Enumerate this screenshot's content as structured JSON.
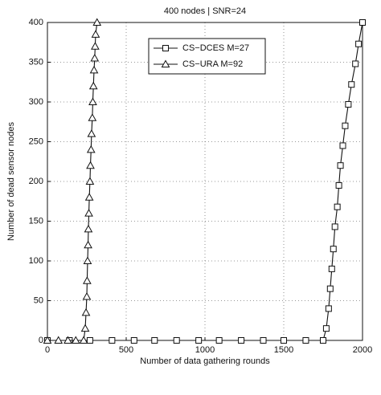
{
  "chart_data": {
    "type": "line",
    "title": "400 nodes | SNR=24",
    "x_label": "Number of data gathering rounds",
    "y_label": "Number of dead sensor nodes",
    "xlim": [
      0,
      2000
    ],
    "xticks": [
      0,
      500,
      1000,
      1500,
      2000
    ],
    "ylim": [
      0,
      400
    ],
    "yticks": [
      0,
      50,
      100,
      150,
      200,
      250,
      300,
      350,
      400
    ],
    "grid": true,
    "legend": "top",
    "series": [
      {
        "name": "CS−DCES M=27",
        "color": "#111111",
        "marker": "square",
        "x": [
          0,
          140,
          270,
          410,
          550,
          680,
          820,
          960,
          1090,
          1230,
          1370,
          1500,
          1640,
          1750,
          1770,
          1785,
          1795,
          1805,
          1815,
          1825,
          1840,
          1850,
          1860,
          1875,
          1890,
          1910,
          1930,
          1955,
          1975,
          2000
        ],
        "values": [
          0,
          0,
          0,
          0,
          0,
          0,
          0,
          0,
          0,
          0,
          0,
          0,
          0,
          0,
          15,
          40,
          65,
          90,
          115,
          143,
          168,
          195,
          220,
          245,
          270,
          297,
          322,
          348,
          373,
          400
        ]
      },
      {
        "name": "CS−URA M=92",
        "color": "#111111",
        "marker": "triangle",
        "x": [
          0,
          70,
          130,
          180,
          230,
          240,
          245,
          250,
          252,
          255,
          258,
          260,
          263,
          266,
          270,
          273,
          277,
          280,
          285,
          288,
          292,
          296,
          300,
          303,
          306,
          315
        ],
        "values": [
          0,
          0,
          0,
          0,
          0,
          15,
          35,
          55,
          75,
          100,
          120,
          140,
          160,
          180,
          200,
          220,
          240,
          260,
          280,
          300,
          320,
          340,
          355,
          370,
          385,
          400
        ]
      }
    ]
  }
}
